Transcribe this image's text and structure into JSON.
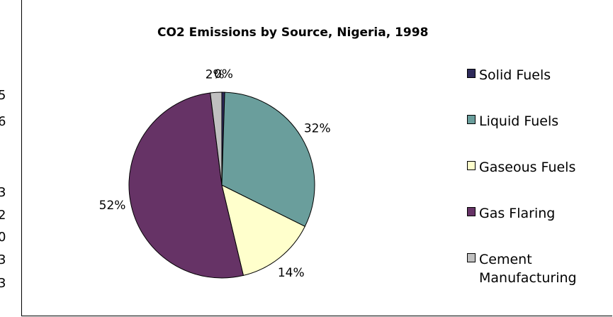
{
  "side_fragments": [
    "5",
    "6",
    "3",
    "2",
    "0",
    "3",
    "3"
  ],
  "chart_data": {
    "type": "pie",
    "title": "CO2 Emissions by Source, Nigeria, 1998",
    "categories": [
      "Solid Fuels",
      "Liquid Fuels",
      "Gaseous Fuels",
      "Gas Flaring",
      "Cement\nManufacturing"
    ],
    "values": [
      0.5,
      32,
      14,
      52,
      2
    ],
    "data_labels": [
      "0%",
      "32%",
      "14%",
      "52%",
      "2%"
    ],
    "colors": [
      "#2e2a5a",
      "#6a9e9c",
      "#ffffcc",
      "#663366",
      "#c0c0c0"
    ],
    "legend": "right",
    "start_angle_deg": 0,
    "direction": "clockwise"
  }
}
